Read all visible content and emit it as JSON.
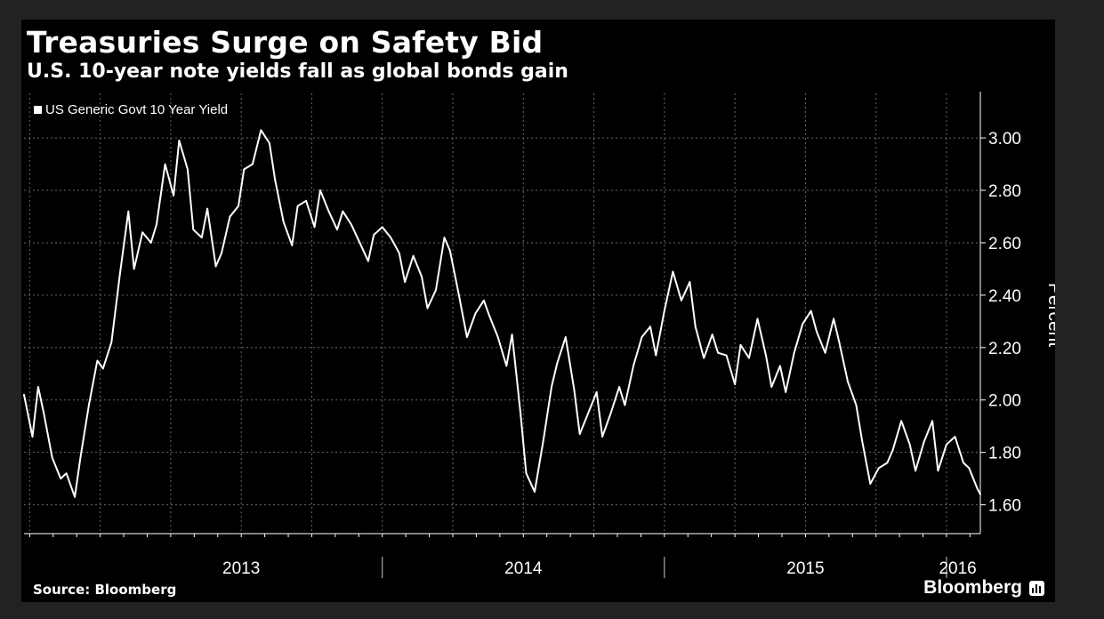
{
  "colors": {
    "page_background": "#222222",
    "panel_background": "#000000",
    "line": "#ffffff",
    "grid": "#6a6a6a",
    "last_value_marker": "#f5a623"
  },
  "header": {
    "title": "Treasuries Surge on Safety Bid",
    "subtitle": "U.S. 10-year note yields fall as global bonds gain"
  },
  "footer": {
    "source": "Source: Bloomberg",
    "brand": "Bloomberg",
    "brand_icon": "bloomberg-chart-icon"
  },
  "chart_data": {
    "type": "line",
    "title": "Treasuries Surge on Safety Bid",
    "subtitle": "U.S. 10-year note yields fall as global bonds gain",
    "xlabel": "",
    "ylabel": "Percent",
    "x_range": [
      2012.73,
      2016.12
    ],
    "ylim": [
      1.49,
      3.17
    ],
    "y_ticks": [
      1.6,
      1.8,
      2.0,
      2.2,
      2.4,
      2.6,
      2.8,
      3.0
    ],
    "y_tick_labels": [
      "1.60",
      "1.80",
      "2.00",
      "2.20",
      "2.40",
      "2.60",
      "2.80",
      "3.00"
    ],
    "x_tick_labels": [
      {
        "label": "2013",
        "x": 2013.5
      },
      {
        "label": "2014",
        "x": 2014.5
      },
      {
        "label": "2015",
        "x": 2015.5
      },
      {
        "label": "2016",
        "x": 2016.04
      }
    ],
    "x_year_separators": [
      2014.0,
      2015.0,
      2016.0
    ],
    "grid": true,
    "legend": {
      "position": "top-left",
      "entries": [
        "US Generic Govt 10 Year Yield"
      ]
    },
    "series": [
      {
        "name": "US Generic Govt 10 Year Yield",
        "x": [
          2012.73,
          2012.76,
          2012.78,
          2012.8,
          2012.83,
          2012.86,
          2012.88,
          2012.91,
          2012.93,
          2012.96,
          2012.99,
          2013.01,
          2013.04,
          2013.07,
          2013.1,
          2013.12,
          2013.15,
          2013.18,
          2013.2,
          2013.23,
          2013.26,
          2013.28,
          2013.31,
          2013.33,
          2013.36,
          2013.38,
          2013.41,
          2013.43,
          2013.46,
          2013.49,
          2013.51,
          2013.54,
          2013.57,
          2013.6,
          2013.62,
          2013.65,
          2013.68,
          2013.7,
          2013.73,
          2013.76,
          2013.78,
          2013.81,
          2013.84,
          2013.86,
          2013.89,
          2013.92,
          2013.95,
          2013.97,
          2014.0,
          2014.03,
          2014.06,
          2014.08,
          2014.11,
          2014.14,
          2014.16,
          2014.19,
          2014.22,
          2014.24,
          2014.27,
          2014.3,
          2014.33,
          2014.36,
          2014.38,
          2014.41,
          2014.44,
          2014.46,
          2014.49,
          2014.51,
          2014.54,
          2014.57,
          2014.6,
          2014.62,
          2014.65,
          2014.68,
          2014.7,
          2014.73,
          2014.76,
          2014.78,
          2014.81,
          2014.84,
          2014.86,
          2014.89,
          2014.92,
          2014.95,
          2014.97,
          2015.0,
          2015.03,
          2015.06,
          2015.09,
          2015.11,
          2015.14,
          2015.17,
          2015.19,
          2015.22,
          2015.25,
          2015.27,
          2015.3,
          2015.33,
          2015.36,
          2015.38,
          2015.41,
          2015.43,
          2015.46,
          2015.49,
          2015.52,
          2015.54,
          2015.57,
          2015.6,
          2015.62,
          2015.65,
          2015.68,
          2015.7,
          2015.73,
          2015.76,
          2015.79,
          2015.81,
          2015.84,
          2015.87,
          2015.89,
          2015.92,
          2015.95,
          2015.97,
          2016.0,
          2016.03,
          2016.06,
          2016.08,
          2016.11,
          2016.12
        ],
        "y": [
          2.02,
          1.86,
          2.05,
          1.95,
          1.78,
          1.7,
          1.72,
          1.63,
          1.78,
          1.98,
          2.15,
          2.12,
          2.22,
          2.48,
          2.72,
          2.5,
          2.64,
          2.6,
          2.67,
          2.9,
          2.78,
          2.99,
          2.88,
          2.65,
          2.62,
          2.73,
          2.51,
          2.56,
          2.7,
          2.74,
          2.88,
          2.9,
          3.03,
          2.98,
          2.84,
          2.68,
          2.59,
          2.74,
          2.76,
          2.66,
          2.8,
          2.72,
          2.65,
          2.72,
          2.67,
          2.6,
          2.53,
          2.63,
          2.66,
          2.62,
          2.56,
          2.45,
          2.55,
          2.47,
          2.35,
          2.42,
          2.62,
          2.57,
          2.41,
          2.24,
          2.33,
          2.38,
          2.32,
          2.24,
          2.13,
          2.25,
          1.95,
          1.72,
          1.65,
          1.84,
          2.05,
          2.14,
          2.24,
          2.04,
          1.87,
          1.95,
          2.03,
          1.86,
          1.95,
          2.05,
          1.98,
          2.13,
          2.24,
          2.28,
          2.17,
          2.34,
          2.49,
          2.38,
          2.45,
          2.28,
          2.16,
          2.25,
          2.18,
          2.17,
          2.06,
          2.21,
          2.16,
          2.31,
          2.17,
          2.05,
          2.13,
          2.03,
          2.18,
          2.29,
          2.34,
          2.26,
          2.18,
          2.31,
          2.22,
          2.07,
          1.98,
          1.85,
          1.68,
          1.74,
          1.76,
          1.81,
          1.92,
          1.83,
          1.73,
          1.84,
          1.92,
          1.73,
          1.83,
          1.86,
          1.76,
          1.74,
          1.66,
          1.64
        ]
      }
    ]
  }
}
